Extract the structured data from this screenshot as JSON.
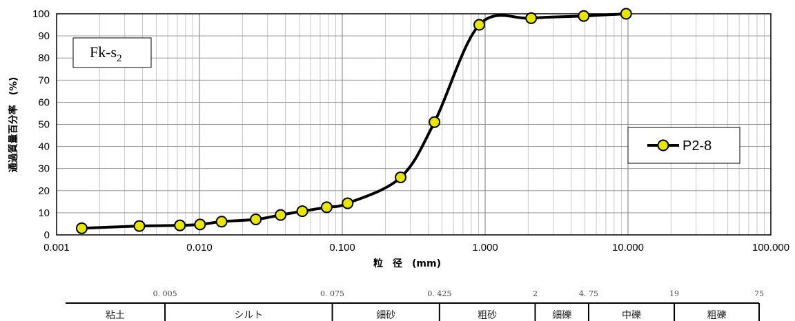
{
  "chart_data": {
    "type": "line",
    "sample_label": {
      "main": "Fk-s",
      "sub": "2"
    },
    "xlabel": "粒　径　(mm)",
    "ylabel": "通過質量百分率　(%)",
    "x_scale": "log",
    "xlim": [
      0.001,
      100
    ],
    "ylim": [
      0,
      100
    ],
    "x_tick_labels": [
      "0.001",
      "0.010",
      "0.100",
      "1.000",
      "10.000",
      "100.000"
    ],
    "y_ticks": [
      0,
      10,
      20,
      30,
      40,
      50,
      60,
      70,
      80,
      90,
      100
    ],
    "grid": true,
    "legend_position": "right",
    "series": [
      {
        "name": "P2-8",
        "line_color": "#000000",
        "marker_color": "#e6e600",
        "x": [
          0.0015,
          0.0038,
          0.0073,
          0.0101,
          0.0143,
          0.0248,
          0.037,
          0.0525,
          0.0778,
          0.109,
          0.256,
          0.442,
          0.91,
          2.1,
          4.9,
          9.7
        ],
        "y": [
          3,
          4,
          4.3,
          4.7,
          6,
          7,
          9,
          10.7,
          12.5,
          14.3,
          26,
          51,
          95,
          98,
          99,
          100
        ]
      }
    ]
  },
  "classification": {
    "boundaries": [
      {
        "value": 0.005,
        "label": "0. 005"
      },
      {
        "value": 0.075,
        "label": "0. 075"
      },
      {
        "value": 0.425,
        "label": "0. 425"
      },
      {
        "value": 2,
        "label": "2"
      },
      {
        "value": 4.75,
        "label": "4. 75"
      },
      {
        "value": 19,
        "label": "19"
      },
      {
        "value": 75,
        "label": "75"
      }
    ],
    "soil_types": [
      {
        "name": "粘土",
        "from": 0.001,
        "to": 0.005
      },
      {
        "name": "シルト",
        "from": 0.005,
        "to": 0.075
      },
      {
        "name": "細砂",
        "from": 0.075,
        "to": 0.425
      },
      {
        "name": "粗砂",
        "from": 0.425,
        "to": 2
      },
      {
        "name": "細礫",
        "from": 2,
        "to": 4.75
      },
      {
        "name": "中礫",
        "from": 4.75,
        "to": 19
      },
      {
        "name": "粗礫",
        "from": 19,
        "to": 75
      }
    ]
  }
}
